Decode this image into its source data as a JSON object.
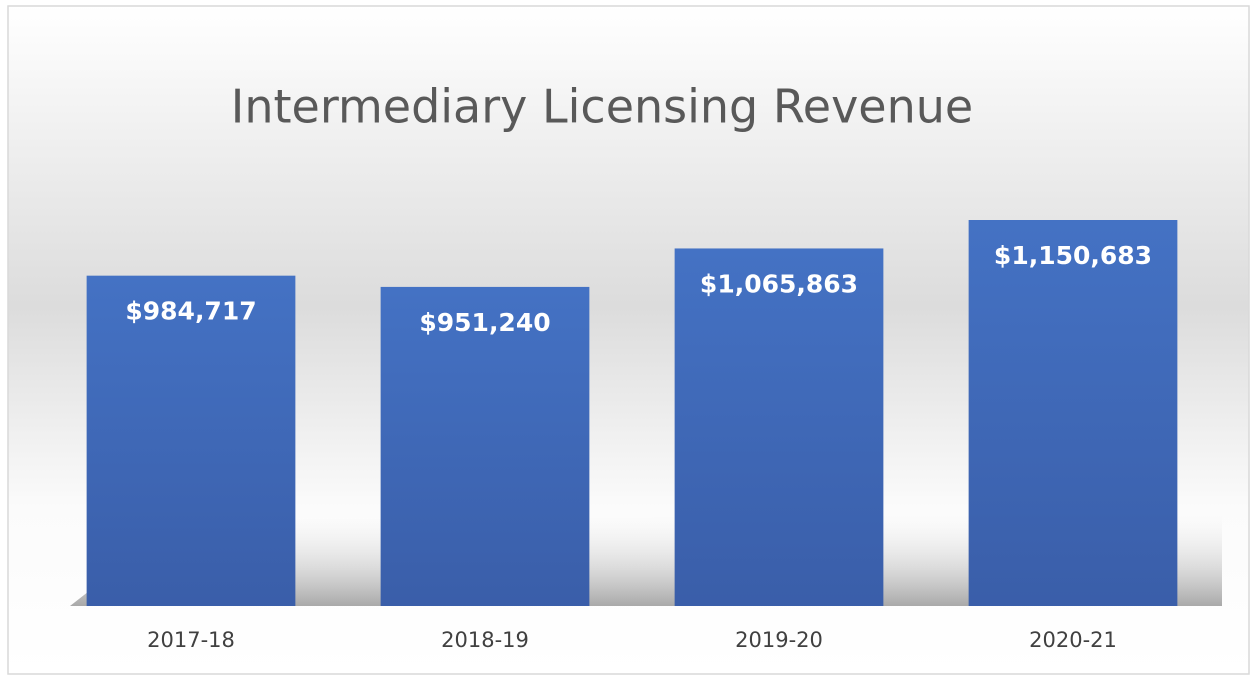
{
  "chart_data": {
    "type": "bar",
    "title": "Intermediary Licensing Revenue",
    "categories": [
      "2017-18",
      "2018-19",
      "2019-20",
      "2020-21"
    ],
    "values": [
      984717,
      951240,
      1065863,
      1150683
    ],
    "value_labels": [
      "$984,717",
      "$951,240",
      "$1,065,863",
      "$1,150,683"
    ],
    "color": "#4472c4"
  }
}
